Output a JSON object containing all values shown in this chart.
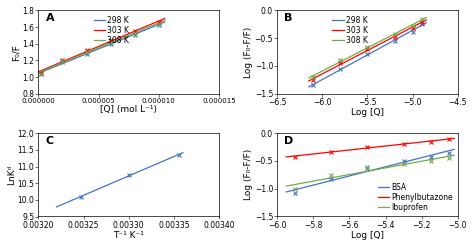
{
  "panel_A": {
    "label": "A",
    "xlabel": "[Q] (mol L⁻¹)",
    "ylabel": "F₀/F",
    "xlim": [
      0,
      1.5e-05
    ],
    "ylim": [
      0.8,
      1.8
    ],
    "xticks": [
      0.0,
      5e-06,
      1e-05,
      1.5e-05
    ],
    "yticks": [
      0.8,
      1.0,
      1.2,
      1.4,
      1.6,
      1.8
    ],
    "series": [
      {
        "label": "298 K",
        "color": "#4472C4",
        "x": [
          2e-07,
          2e-06,
          4e-06,
          6e-06,
          8e-06,
          1e-05
        ],
        "y": [
          1.04,
          1.18,
          1.28,
          1.4,
          1.51,
          1.63
        ]
      },
      {
        "label": "303 K",
        "color": "#FF0000",
        "x": [
          2e-07,
          2e-06,
          4e-06,
          6e-06,
          8e-06,
          1e-05
        ],
        "y": [
          1.05,
          1.2,
          1.32,
          1.44,
          1.55,
          1.66
        ]
      },
      {
        "label": "308 K",
        "color": "#70AD47",
        "x": [
          2e-07,
          2e-06,
          4e-06,
          6e-06,
          8e-06,
          1e-05
        ],
        "y": [
          1.04,
          1.19,
          1.3,
          1.42,
          1.53,
          1.64
        ]
      }
    ],
    "fit_xlim": [
      0,
      1.05e-05
    ]
  },
  "panel_B": {
    "label": "B",
    "xlabel": "Log [Q]",
    "ylabel": "Log (F₀-F/F)",
    "xlim": [
      -6.5,
      -4.5
    ],
    "ylim": [
      -1.5,
      0.0
    ],
    "xticks": [
      -6.5,
      -6.0,
      -5.5,
      -5.0,
      -4.5
    ],
    "yticks": [
      -1.5,
      -1.0,
      -0.5,
      0.0
    ],
    "series": [
      {
        "label": "298 K",
        "color": "#4472C4",
        "x": [
          -6.1,
          -5.8,
          -5.5,
          -5.2,
          -5.0,
          -4.9
        ],
        "y": [
          -1.35,
          -1.05,
          -0.78,
          -0.55,
          -0.38,
          -0.25
        ]
      },
      {
        "label": "303 K",
        "color": "#FF0000",
        "x": [
          -6.1,
          -5.8,
          -5.5,
          -5.2,
          -5.0,
          -4.9
        ],
        "y": [
          -1.25,
          -0.95,
          -0.7,
          -0.48,
          -0.32,
          -0.2
        ]
      },
      {
        "label": "308 K",
        "color": "#70AD47",
        "x": [
          -6.1,
          -5.8,
          -5.5,
          -5.2,
          -5.0,
          -4.9
        ],
        "y": [
          -1.2,
          -0.9,
          -0.65,
          -0.43,
          -0.28,
          -0.16
        ]
      }
    ],
    "fit_xlim": [
      -6.15,
      -4.85
    ]
  },
  "panel_C": {
    "label": "C",
    "xlabel": "T⁻¹ K⁻¹",
    "ylabel": "LnKᵈ",
    "xlim": [
      0.0032,
      0.0034
    ],
    "ylim": [
      9.5,
      12.0
    ],
    "xticks": [
      0.0032,
      0.00325,
      0.0033,
      0.00335,
      0.0034
    ],
    "yticks": [
      9.5,
      10.0,
      10.5,
      11.0,
      11.5,
      12.0
    ],
    "series": [
      {
        "label": "",
        "color": "#4472C4",
        "x": [
          0.003247,
          0.0033,
          0.003356
        ],
        "y": [
          10.08,
          10.76,
          11.35
        ]
      }
    ],
    "fit_xlim": [
      0.00322,
      0.00336
    ]
  },
  "panel_D": {
    "label": "D",
    "xlabel": "Log [Q]",
    "ylabel": "Log (F₀-F/F)",
    "xlim": [
      -6.0,
      -5.0
    ],
    "ylim": [
      -1.5,
      0.0
    ],
    "xticks": [
      -6.0,
      -5.8,
      -5.6,
      -5.4,
      -5.2,
      -5.0
    ],
    "yticks": [
      -1.5,
      -1.0,
      -0.5,
      0.0
    ],
    "series": [
      {
        "label": "BSA",
        "color": "#4472C4",
        "x": [
          -5.9,
          -5.7,
          -5.5,
          -5.3,
          -5.15,
          -5.05
        ],
        "y": [
          -1.08,
          -0.82,
          -0.62,
          -0.5,
          -0.42,
          -0.35
        ]
      },
      {
        "label": "Phenylbutazone",
        "color": "#FF0000",
        "x": [
          -5.9,
          -5.7,
          -5.5,
          -5.3,
          -5.15,
          -5.05
        ],
        "y": [
          -0.42,
          -0.33,
          -0.25,
          -0.2,
          -0.15,
          -0.1
        ]
      },
      {
        "label": "Ibuprofen",
        "color": "#70AD47",
        "x": [
          -5.9,
          -5.7,
          -5.5,
          -5.3,
          -5.15,
          -5.05
        ],
        "y": [
          -1.0,
          -0.76,
          -0.6,
          -0.55,
          -0.5,
          -0.45
        ]
      }
    ],
    "fit_xlim": [
      -5.95,
      -5.02
    ]
  },
  "bg_color": "#ffffff",
  "panel_label_fontsize": 8,
  "axis_label_fontsize": 6.5,
  "tick_fontsize": 5.5,
  "legend_fontsize": 5.5,
  "linewidth": 0.9,
  "markersize": 2.5,
  "markeredgewidth": 0.8
}
